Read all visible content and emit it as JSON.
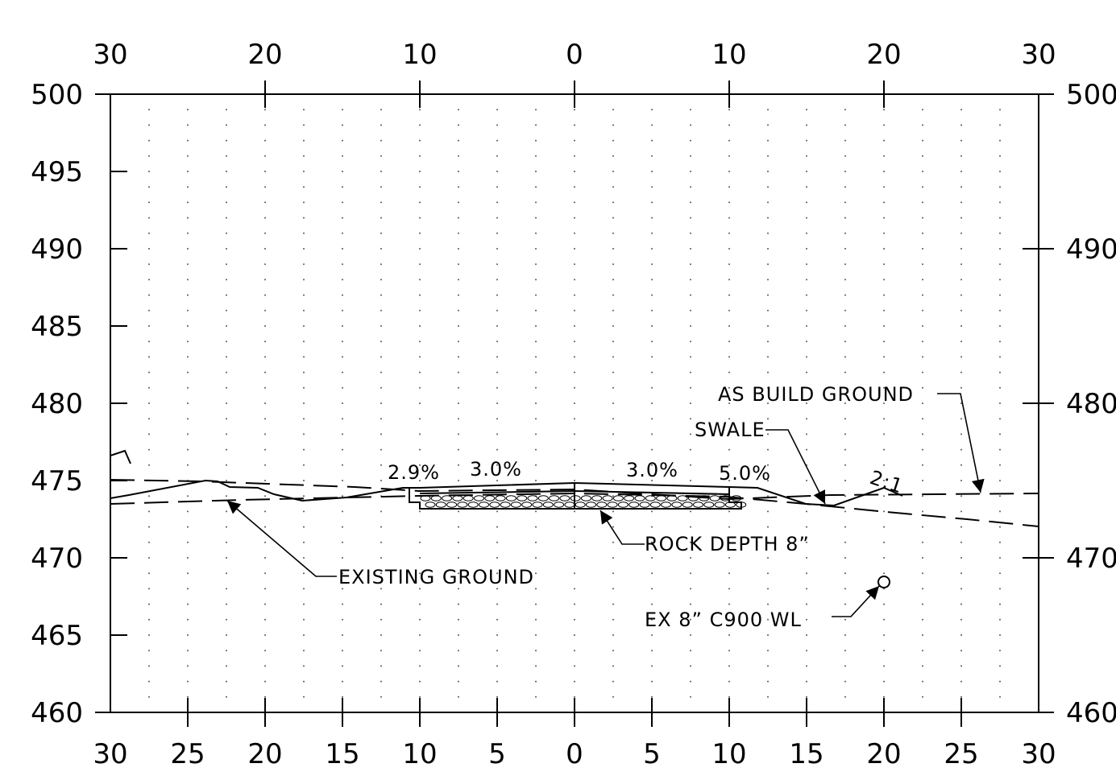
{
  "drawing": {
    "top_axis_labels": [
      "30",
      "20",
      "10",
      "0",
      "10",
      "20",
      "30"
    ],
    "bottom_axis_labels": [
      "30",
      "25",
      "20",
      "15",
      "10",
      "5",
      "0",
      "5",
      "10",
      "15",
      "20",
      "25",
      "30"
    ],
    "left_elevation_labels": [
      "500",
      "495",
      "490",
      "485",
      "480",
      "475",
      "470",
      "465",
      "460"
    ],
    "right_elevation_labels": [
      "500",
      "490",
      "480",
      "470",
      "460"
    ],
    "offset_range": [
      -30,
      30
    ],
    "elevation_range": [
      460,
      500
    ],
    "labels": {
      "existing_ground": "EXISTING GROUND",
      "as_build_ground": "AS BUILD GROUND",
      "swale": "SWALE",
      "rock_depth": "ROCK DEPTH 8”",
      "water_line": "EX 8” C900 WL",
      "slope_left": "2.9%",
      "slope_left_inner": "3.0%",
      "slope_right_inner": "3.0%",
      "slope_right": "5.0%",
      "side_slope": "2:1"
    }
  }
}
